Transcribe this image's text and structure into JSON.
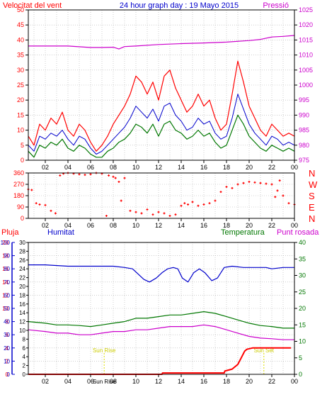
{
  "title": "24 hour graph day : 19 Mayo 2015",
  "colors": {
    "wind": "#ff0000",
    "gust_green": "#007700",
    "wind_avg_blue": "#0000cc",
    "pressure": "#cc00cc",
    "direction": "#ff0000",
    "humidity": "#0000cc",
    "temperature": "#007700",
    "dewpoint": "#cc00cc",
    "rain": "#ff0000",
    "sun": "#dddd00",
    "grid": "#b0b0b0"
  },
  "x_ticks": [
    "02",
    "04",
    "06",
    "08",
    "10",
    "12",
    "14",
    "16",
    "18",
    "20",
    "22",
    "00"
  ],
  "panel_wind": {
    "label_left": "Velocitat del vent",
    "label_right": "Pressió",
    "y_left_ticks": [
      "0",
      "5",
      "10",
      "15",
      "20",
      "25",
      "30",
      "35",
      "40",
      "45",
      "50"
    ],
    "y_right_ticks": [
      "975",
      "980",
      "985",
      "990",
      "995",
      "1000",
      "1005",
      "1010",
      "1015",
      "1020",
      "1025"
    ]
  },
  "panel_dir": {
    "y_left_ticks": [
      "0",
      "90",
      "180",
      "270",
      "360"
    ],
    "y_right_labels": [
      "N",
      "W",
      "S",
      "E",
      "N"
    ]
  },
  "panel_bottom": {
    "label_rain": "Pluja",
    "label_humidity": "Humitat",
    "label_temperature": "Temperatura",
    "label_dewpoint": "Punt rosada",
    "rain_ticks": [
      "0",
      "2",
      "4",
      "6",
      "8",
      "10",
      "12",
      "14",
      "16",
      "18",
      "20"
    ],
    "hum_ticks": [
      "0",
      "10",
      "20",
      "30",
      "40",
      "50",
      "60",
      "70",
      "80",
      "90",
      "100"
    ],
    "temp_ticks_left": [
      "0",
      "2",
      "4",
      "6",
      "8",
      "10",
      "12",
      "14",
      "16",
      "18",
      "20",
      "22",
      "24",
      "26",
      "28",
      "30"
    ],
    "temp_ticks_right": [
      "0",
      "5",
      "10",
      "15",
      "20",
      "25",
      "30",
      "35",
      "40"
    ],
    "sun_rise_label": "Sun Rise",
    "sun_set_label": "Sun Set"
  },
  "chart_data": [
    {
      "type": "line",
      "title": "24 hour graph day : 19 Mayo 2015",
      "x_unit": "hour",
      "x_range": [
        0.5,
        24
      ],
      "ylabel": "Velocitat del vent",
      "ylim": [
        0,
        50
      ],
      "y2label": "Pressió",
      "y2lim": [
        975,
        1025
      ],
      "series": [
        {
          "name": "Velocitat del vent",
          "axis": "left",
          "x": [
            0.5,
            1,
            1.5,
            2,
            2.5,
            3,
            3.5,
            4,
            4.5,
            5,
            5.5,
            6,
            6.5,
            7,
            7.5,
            8,
            8.5,
            9,
            9.5,
            10,
            10.5,
            11,
            11.5,
            12,
            12.5,
            13,
            13.5,
            14,
            14.5,
            15,
            15.5,
            16,
            16.5,
            17,
            17.5,
            18,
            18.5,
            19,
            19.5,
            20,
            20.5,
            21,
            21.5,
            22,
            22.5,
            23,
            23.5,
            24
          ],
          "values": [
            8,
            5,
            12,
            10,
            14,
            12,
            16,
            10,
            8,
            12,
            10,
            6,
            3,
            5,
            8,
            12,
            15,
            18,
            22,
            28,
            26,
            22,
            26,
            20,
            28,
            30,
            24,
            20,
            16,
            18,
            22,
            18,
            20,
            14,
            10,
            12,
            22,
            33,
            26,
            18,
            14,
            10,
            8,
            12,
            10,
            8,
            9,
            8
          ]
        },
        {
          "axis": "left",
          "x": [
            0.5,
            1,
            1.5,
            2,
            2.5,
            3,
            3.5,
            4,
            4.5,
            5,
            5.5,
            6,
            6.5,
            7,
            7.5,
            8,
            8.5,
            9,
            9.5,
            10,
            10.5,
            11,
            11.5,
            12,
            12.5,
            13,
            13.5,
            14,
            14.5,
            15,
            15.5,
            16,
            16.5,
            17,
            17.5,
            18,
            18.5,
            19,
            19.5,
            20,
            20.5,
            21,
            21.5,
            22,
            22.5,
            23,
            23.5,
            24
          ],
          "values": [
            5,
            3,
            8,
            7,
            9,
            8,
            10,
            7,
            5,
            8,
            7,
            4,
            2,
            3,
            5,
            7,
            9,
            11,
            14,
            18,
            16,
            14,
            17,
            13,
            18,
            19,
            15,
            13,
            10,
            11,
            14,
            12,
            13,
            9,
            7,
            8,
            14,
            22,
            17,
            12,
            9,
            7,
            5,
            8,
            7,
            5,
            6,
            5
          ]
        },
        {
          "axis": "left",
          "x": [
            0.5,
            1,
            1.5,
            2,
            2.5,
            3,
            3.5,
            4,
            4.5,
            5,
            5.5,
            6,
            6.5,
            7,
            7.5,
            8,
            8.5,
            9,
            9.5,
            10,
            10.5,
            11,
            11.5,
            12,
            12.5,
            13,
            13.5,
            14,
            14.5,
            15,
            15.5,
            16,
            16.5,
            17,
            17.5,
            18,
            18.5,
            19,
            19.5,
            20,
            20.5,
            21,
            21.5,
            22,
            22.5,
            23,
            23.5,
            24
          ],
          "values": [
            3,
            1,
            5,
            4,
            6,
            5,
            7,
            4,
            3,
            5,
            4,
            2,
            1,
            1,
            3,
            4,
            6,
            7,
            9,
            12,
            11,
            9,
            12,
            8,
            12,
            13,
            10,
            9,
            7,
            8,
            10,
            8,
            9,
            6,
            4,
            5,
            10,
            15,
            12,
            8,
            6,
            4,
            3,
            5,
            4,
            3,
            4,
            3
          ]
        },
        {
          "name": "Pressió",
          "axis": "right",
          "x": [
            0.5,
            2,
            4,
            6,
            7,
            8,
            8.5,
            9,
            10,
            12,
            14,
            16,
            18,
            20,
            21,
            22,
            23,
            24
          ],
          "values": [
            1013,
            1013,
            1013,
            1012.5,
            1012.5,
            1012.6,
            1012,
            1012.8,
            1013,
            1013.5,
            1013.8,
            1014,
            1014.3,
            1014.8,
            1015.2,
            1016,
            1016.2,
            1016.5
          ]
        }
      ]
    },
    {
      "type": "scatter",
      "x_unit": "hour",
      "x_range": [
        0.5,
        24
      ],
      "ylim": [
        0,
        360
      ],
      "series": [
        {
          "x": [
            0.5,
            0.8,
            1.2,
            1.5,
            2.0,
            2.5,
            2.9,
            3.3,
            3.6,
            4.0,
            4.5,
            5.0,
            5.5,
            6.0,
            6.5,
            7.0,
            7.4,
            7.6,
            8.0,
            8.2,
            8.5,
            8.7,
            9.0,
            9.5,
            10.0,
            10.5,
            11.0,
            11.5,
            12.0,
            12.5,
            13.0,
            13.5,
            14.0,
            14.3,
            14.6,
            15.0,
            15.5,
            16.0,
            16.5,
            17.0,
            17.5,
            18.0,
            18.5,
            19.0,
            19.5,
            20.0,
            20.5,
            21.0,
            21.5,
            22.0,
            22.3,
            22.5,
            22.7,
            23.0,
            23.5,
            24.0
          ],
          "values": [
            230,
            225,
            120,
            110,
            105,
            60,
            40,
            340,
            355,
            360,
            355,
            350,
            345,
            350,
            360,
            355,
            20,
            340,
            330,
            320,
            290,
            140,
            320,
            60,
            50,
            40,
            70,
            30,
            50,
            40,
            20,
            30,
            100,
            120,
            110,
            130,
            100,
            110,
            120,
            140,
            210,
            250,
            240,
            270,
            280,
            290,
            285,
            280,
            275,
            270,
            170,
            220,
            300,
            180,
            120,
            110
          ]
        }
      ]
    },
    {
      "type": "line",
      "x_unit": "hour",
      "x_range": [
        0.5,
        24
      ],
      "series": [
        {
          "name": "Humitat",
          "axis": "humidity",
          "ylim": [
            0,
            100
          ],
          "x": [
            0.5,
            2,
            4,
            6,
            7,
            8,
            9,
            9.7,
            10.2,
            10.7,
            11.2,
            11.8,
            12.3,
            12.8,
            13.3,
            13.7,
            14.1,
            14.6,
            15.1,
            15.6,
            16.1,
            16.7,
            17.2,
            17.8,
            18.5,
            19.5,
            20.5,
            21.5,
            22,
            23,
            24
          ],
          "values": [
            83,
            83,
            82,
            82,
            82,
            82,
            81,
            80,
            76,
            72,
            70,
            73,
            77,
            80,
            81,
            80,
            73,
            70,
            77,
            80,
            77,
            71,
            73,
            81,
            82,
            81,
            81,
            81,
            80,
            81,
            81
          ]
        },
        {
          "name": "Temperatura",
          "axis": "temperature",
          "ylim": [
            0,
            40
          ],
          "x": [
            0.5,
            2,
            3,
            4,
            5,
            6,
            7,
            8,
            9,
            10,
            11,
            12,
            13,
            14,
            15,
            16,
            17,
            18,
            19,
            20,
            21,
            22,
            23,
            24
          ],
          "values": [
            16,
            15.5,
            15,
            15,
            14.8,
            14.5,
            15,
            15.5,
            16,
            17,
            17,
            17.5,
            18,
            18,
            18.5,
            19,
            18.5,
            17.5,
            16.5,
            15.5,
            14.8,
            14.5,
            14,
            14
          ]
        },
        {
          "name": "Punt rosada",
          "axis": "temperature",
          "ylim": [
            0,
            40
          ],
          "x": [
            0.5,
            2,
            3,
            4,
            5,
            6,
            7,
            8,
            9,
            10,
            11,
            12,
            13,
            14,
            15,
            16,
            17,
            18,
            19,
            20,
            21,
            22,
            23,
            24
          ],
          "values": [
            13.5,
            13,
            12.5,
            12.5,
            12,
            12,
            12.5,
            13,
            13,
            13.5,
            13.5,
            14,
            14.5,
            14.5,
            14.5,
            15,
            14.5,
            13.5,
            12.5,
            11.5,
            11,
            10.8,
            10.5,
            10.5
          ]
        },
        {
          "name": "Pluja",
          "axis": "rain",
          "ylim": [
            0,
            20
          ],
          "x": [
            0.5,
            12.3,
            12.35,
            17.8,
            17.85,
            18.5,
            19.0,
            19.3,
            19.6,
            19.8,
            20.3,
            23.7
          ],
          "values": [
            0,
            0,
            0.2,
            0.2,
            0.5,
            0.8,
            1.5,
            2.5,
            3.5,
            3.8,
            4.0,
            4.0
          ]
        }
      ],
      "annotations": [
        {
          "label": "Sun Rise",
          "x": 7.2
        },
        {
          "label": "Sun Set",
          "x": 21.3
        }
      ]
    }
  ]
}
